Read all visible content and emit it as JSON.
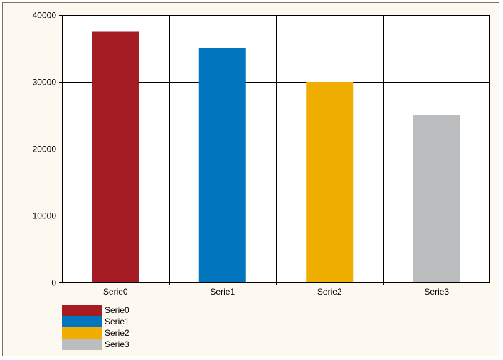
{
  "chart_data": {
    "type": "bar",
    "categories": [
      "Serie0",
      "Serie1",
      "Serie2",
      "Serie3"
    ],
    "values": [
      37500,
      35000,
      30000,
      25000
    ],
    "colors": [
      "#a51c24",
      "#0175be",
      "#f0ae00",
      "#bcbdbf"
    ],
    "ylim": [
      0,
      40000
    ],
    "yticks": [
      "0",
      "10000",
      "20000",
      "30000",
      "40000"
    ],
    "grid": true,
    "legend_position": "bottom-left",
    "legend": [
      "Serie0",
      "Serie1",
      "Serie2",
      "Serie3"
    ]
  }
}
